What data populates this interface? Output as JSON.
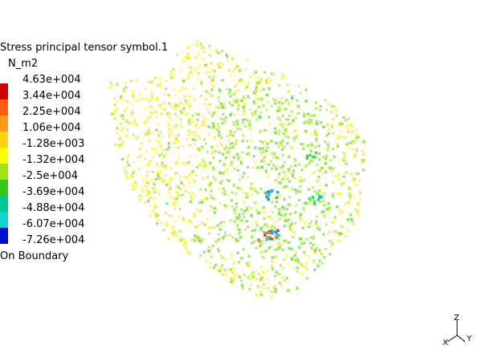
{
  "legend": {
    "title": "Stress principal tensor symbol.1",
    "unit": "N_m2",
    "entries": [
      {
        "value": "4.63e+004",
        "color": "#cc0000"
      },
      {
        "value": "3.44e+004",
        "color": "#ff5a14"
      },
      {
        "value": "2.25e+004",
        "color": "#ff9a1a"
      },
      {
        "value": "1.06e+004",
        "color": "#ffd21a"
      },
      {
        "value": "-1.28e+003",
        "color": "#ffff00"
      },
      {
        "value": "-1.32e+004",
        "color": "#a6e01a"
      },
      {
        "value": "-2.5e+004",
        "color": "#39c81e"
      },
      {
        "value": "-3.69e+004",
        "color": "#00c894"
      },
      {
        "value": "-4.88e+004",
        "color": "#18d2d2"
      },
      {
        "value": "-6.07e+004",
        "color": "#1a78f0"
      },
      {
        "value": "-7.26e+004",
        "color": "#0010c8"
      }
    ],
    "footer": "On Boundary"
  },
  "triad": {
    "z_label": "Z",
    "y_label": "Y",
    "x_label": "X"
  },
  "view": {
    "background": "#ffffff",
    "dominant_symbol_colors": [
      "#ffff33",
      "#99e633",
      "#66dd33"
    ]
  }
}
